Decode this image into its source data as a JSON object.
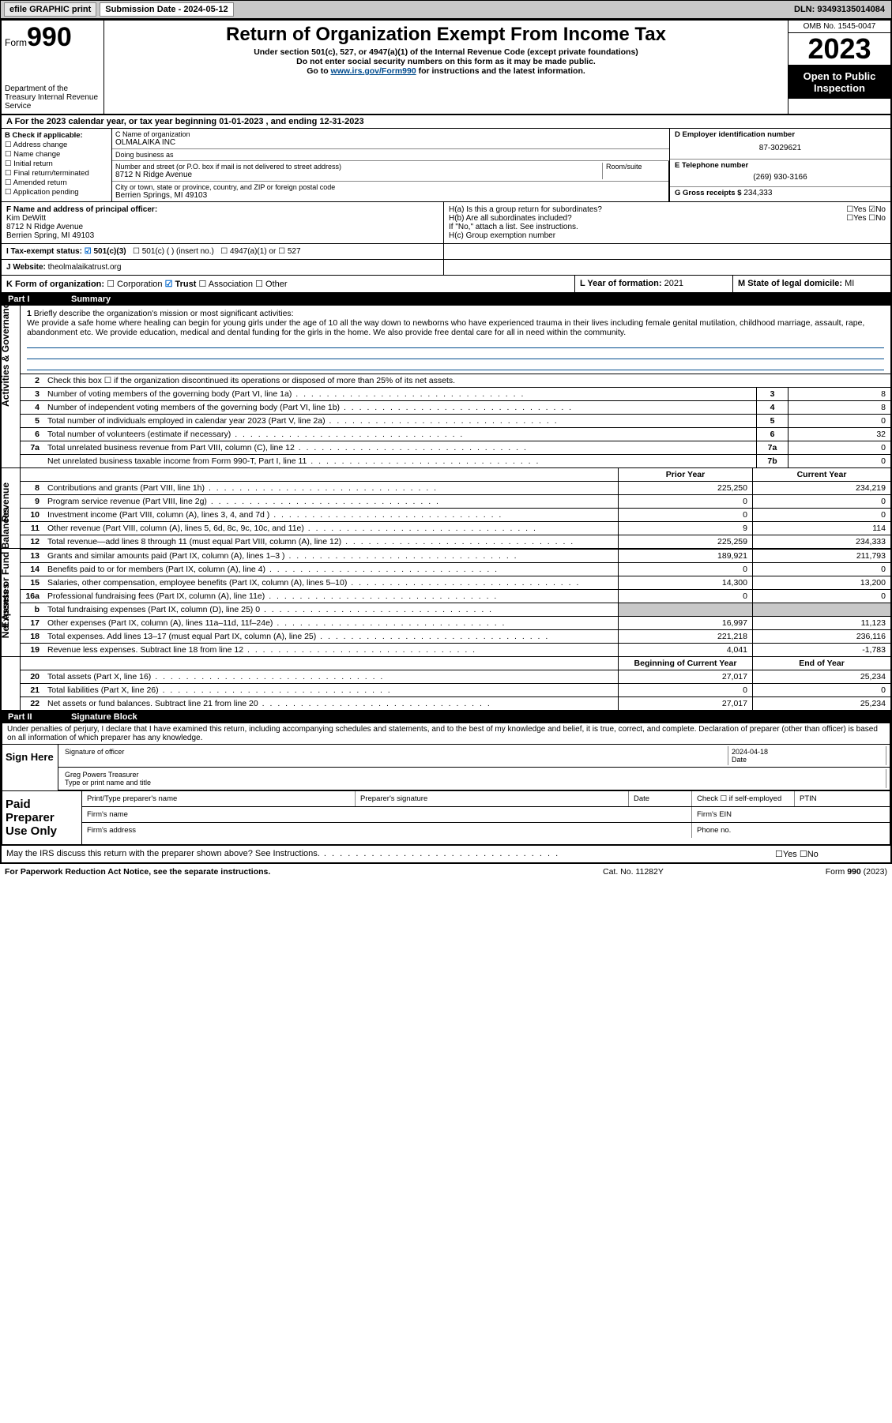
{
  "topbar": {
    "efile": "efile GRAPHIC print",
    "sub_label": "Submission Date - 2024-05-12",
    "dln": "DLN: 93493135014084"
  },
  "header": {
    "form_prefix": "Form",
    "form_num": "990",
    "title": "Return of Organization Exempt From Income Tax",
    "sub1": "Under section 501(c), 527, or 4947(a)(1) of the Internal Revenue Code (except private foundations)",
    "sub2": "Do not enter social security numbers on this form as it may be made public.",
    "sub3_a": "Go to ",
    "sub3_link": "www.irs.gov/Form990",
    "sub3_b": " for instructions and the latest information.",
    "omb": "OMB No. 1545-0047",
    "year": "2023",
    "inspect": "Open to Public Inspection",
    "dept": "Department of the Treasury Internal Revenue Service"
  },
  "A": {
    "line": "A For the 2023 calendar year, or tax year beginning 01-01-2023   , and ending 12-31-2023"
  },
  "B": {
    "hdr": "B Check if applicable:",
    "items": [
      "Address change",
      "Name change",
      "Initial return",
      "Final return/terminated",
      "Amended return",
      "Application pending"
    ]
  },
  "C": {
    "name_lbl": "C Name of organization",
    "name": "OLMALAIKA INC",
    "dba_lbl": "Doing business as",
    "dba": "",
    "addr_lbl": "Number and street (or P.O. box if mail is not delivered to street address)",
    "room_lbl": "Room/suite",
    "addr": "8712 N Ridge Avenue",
    "city_lbl": "City or town, state or province, country, and ZIP or foreign postal code",
    "city": "Berrien Springs, MI  49103"
  },
  "D": {
    "lbl": "D Employer identification number",
    "val": "87-3029621"
  },
  "E": {
    "lbl": "E Telephone number",
    "val": "(269) 930-3166"
  },
  "G": {
    "lbl": "G Gross receipts $",
    "val": "234,333"
  },
  "F": {
    "lbl": "F Name and address of principal officer:",
    "name": "Kim DeWitt",
    "addr1": "8712 N Ridge Avenue",
    "addr2": "Berrien Spring, MI  49103"
  },
  "H": {
    "a": "H(a)  Is this a group return for subordinates?",
    "a_ans": "☐Yes ☑No",
    "b": "H(b)  Are all subordinates included?",
    "b_ans": "☐Yes ☐No",
    "b_note": "If \"No,\" attach a list. See instructions.",
    "c": "H(c)  Group exemption number"
  },
  "I": {
    "lbl": "I   Tax-exempt status:",
    "opt1": "501(c)(3)",
    "opt2": "501(c) (  ) (insert no.)",
    "opt3": "4947(a)(1) or",
    "opt4": "527"
  },
  "J": {
    "lbl": "J   Website:",
    "val": "theolmalaikatrust.org"
  },
  "K": {
    "lbl": "K Form of organization:",
    "opts": [
      "Corporation",
      "Trust",
      "Association",
      "Other"
    ]
  },
  "L": {
    "lbl": "L Year of formation:",
    "val": "2021"
  },
  "M": {
    "lbl": "M State of legal domicile:",
    "val": "MI"
  },
  "part1": {
    "hdr_l": "Part I",
    "hdr_r": "Summary",
    "q1_lbl": "Briefly describe the organization's mission or most significant activities:",
    "q1_text": "We provide a safe home where healing can begin for young girls under the age of 10 all the way down to newborns who have experienced trauma in their lives including female genital mutilation, childhood marriage, assault, rape, abandonment etc. We provide education, medical and dental funding for the girls in the home. We also provide free dental care for all in need within the community.",
    "q2": "Check this box ☐ if the organization discontinued its operations or disposed of more than 25% of its net assets.",
    "lines_gov": [
      {
        "n": "3",
        "t": "Number of voting members of the governing body (Part VI, line 1a)",
        "box": "3",
        "v": "8"
      },
      {
        "n": "4",
        "t": "Number of independent voting members of the governing body (Part VI, line 1b)",
        "box": "4",
        "v": "8"
      },
      {
        "n": "5",
        "t": "Total number of individuals employed in calendar year 2023 (Part V, line 2a)",
        "box": "5",
        "v": "0"
      },
      {
        "n": "6",
        "t": "Total number of volunteers (estimate if necessary)",
        "box": "6",
        "v": "32"
      },
      {
        "n": "7a",
        "t": "Total unrelated business revenue from Part VIII, column (C), line 12",
        "box": "7a",
        "v": "0"
      },
      {
        "n": "",
        "t": "Net unrelated business taxable income from Form 990-T, Part I, line 11",
        "box": "7b",
        "v": "0"
      }
    ],
    "col_prior_hdr": "Prior Year",
    "col_curr_hdr": "Current Year",
    "lines_rev": [
      {
        "n": "8",
        "t": "Contributions and grants (Part VIII, line 1h)",
        "p": "225,250",
        "c": "234,219"
      },
      {
        "n": "9",
        "t": "Program service revenue (Part VIII, line 2g)",
        "p": "0",
        "c": "0"
      },
      {
        "n": "10",
        "t": "Investment income (Part VIII, column (A), lines 3, 4, and 7d )",
        "p": "0",
        "c": "0"
      },
      {
        "n": "11",
        "t": "Other revenue (Part VIII, column (A), lines 5, 6d, 8c, 9c, 10c, and 11e)",
        "p": "9",
        "c": "114"
      },
      {
        "n": "12",
        "t": "Total revenue—add lines 8 through 11 (must equal Part VIII, column (A), line 12)",
        "p": "225,259",
        "c": "234,333"
      }
    ],
    "lines_exp": [
      {
        "n": "13",
        "t": "Grants and similar amounts paid (Part IX, column (A), lines 1–3 )",
        "p": "189,921",
        "c": "211,793"
      },
      {
        "n": "14",
        "t": "Benefits paid to or for members (Part IX, column (A), line 4)",
        "p": "0",
        "c": "0"
      },
      {
        "n": "15",
        "t": "Salaries, other compensation, employee benefits (Part IX, column (A), lines 5–10)",
        "p": "14,300",
        "c": "13,200"
      },
      {
        "n": "16a",
        "t": "Professional fundraising fees (Part IX, column (A), line 11e)",
        "p": "0",
        "c": "0"
      },
      {
        "n": "b",
        "t": "Total fundraising expenses (Part IX, column (D), line 25) 0",
        "p": "",
        "c": "",
        "shaded": true
      },
      {
        "n": "17",
        "t": "Other expenses (Part IX, column (A), lines 11a–11d, 11f–24e)",
        "p": "16,997",
        "c": "11,123"
      },
      {
        "n": "18",
        "t": "Total expenses. Add lines 13–17 (must equal Part IX, column (A), line 25)",
        "p": "221,218",
        "c": "236,116"
      },
      {
        "n": "19",
        "t": "Revenue less expenses. Subtract line 18 from line 12",
        "p": "4,041",
        "c": "-1,783"
      }
    ],
    "col_beg_hdr": "Beginning of Current Year",
    "col_end_hdr": "End of Year",
    "lines_net": [
      {
        "n": "20",
        "t": "Total assets (Part X, line 16)",
        "p": "27,017",
        "c": "25,234"
      },
      {
        "n": "21",
        "t": "Total liabilities (Part X, line 26)",
        "p": "0",
        "c": "0"
      },
      {
        "n": "22",
        "t": "Net assets or fund balances. Subtract line 21 from line 20",
        "p": "27,017",
        "c": "25,234"
      }
    ]
  },
  "vert_labels": {
    "gov": "Activities & Governance",
    "rev": "Revenue",
    "exp": "Expenses",
    "net": "Net Assets or Fund Balances"
  },
  "part2": {
    "hdr_l": "Part II",
    "hdr_r": "Signature Block",
    "decl": "Under penalties of perjury, I declare that I have examined this return, including accompanying schedules and statements, and to the best of my knowledge and belief, it is true, correct, and complete. Declaration of preparer (other than officer) is based on all information of which preparer has any knowledge.",
    "sign_here": "Sign Here",
    "sig_of": "Signature of officer",
    "date_lbl": "Date",
    "date_val": "2024-04-18",
    "name": "Greg Powers Treasurer",
    "type_lbl": "Type or print name and title",
    "paid": "Paid Preparer Use Only",
    "prep_name": "Print/Type preparer's name",
    "prep_sig": "Preparer's signature",
    "prep_date": "Date",
    "prep_chk": "Check ☐ if self-employed",
    "ptin": "PTIN",
    "firm_name": "Firm's name",
    "firm_ein": "Firm's EIN",
    "firm_addr": "Firm's address",
    "phone": "Phone no.",
    "discuss": "May the IRS discuss this return with the preparer shown above? See Instructions.",
    "discuss_ans": "☐Yes  ☐No"
  },
  "footer": {
    "l": "For Paperwork Reduction Act Notice, see the separate instructions.",
    "c": "Cat. No. 11282Y",
    "r": "Form 990 (2023)"
  }
}
